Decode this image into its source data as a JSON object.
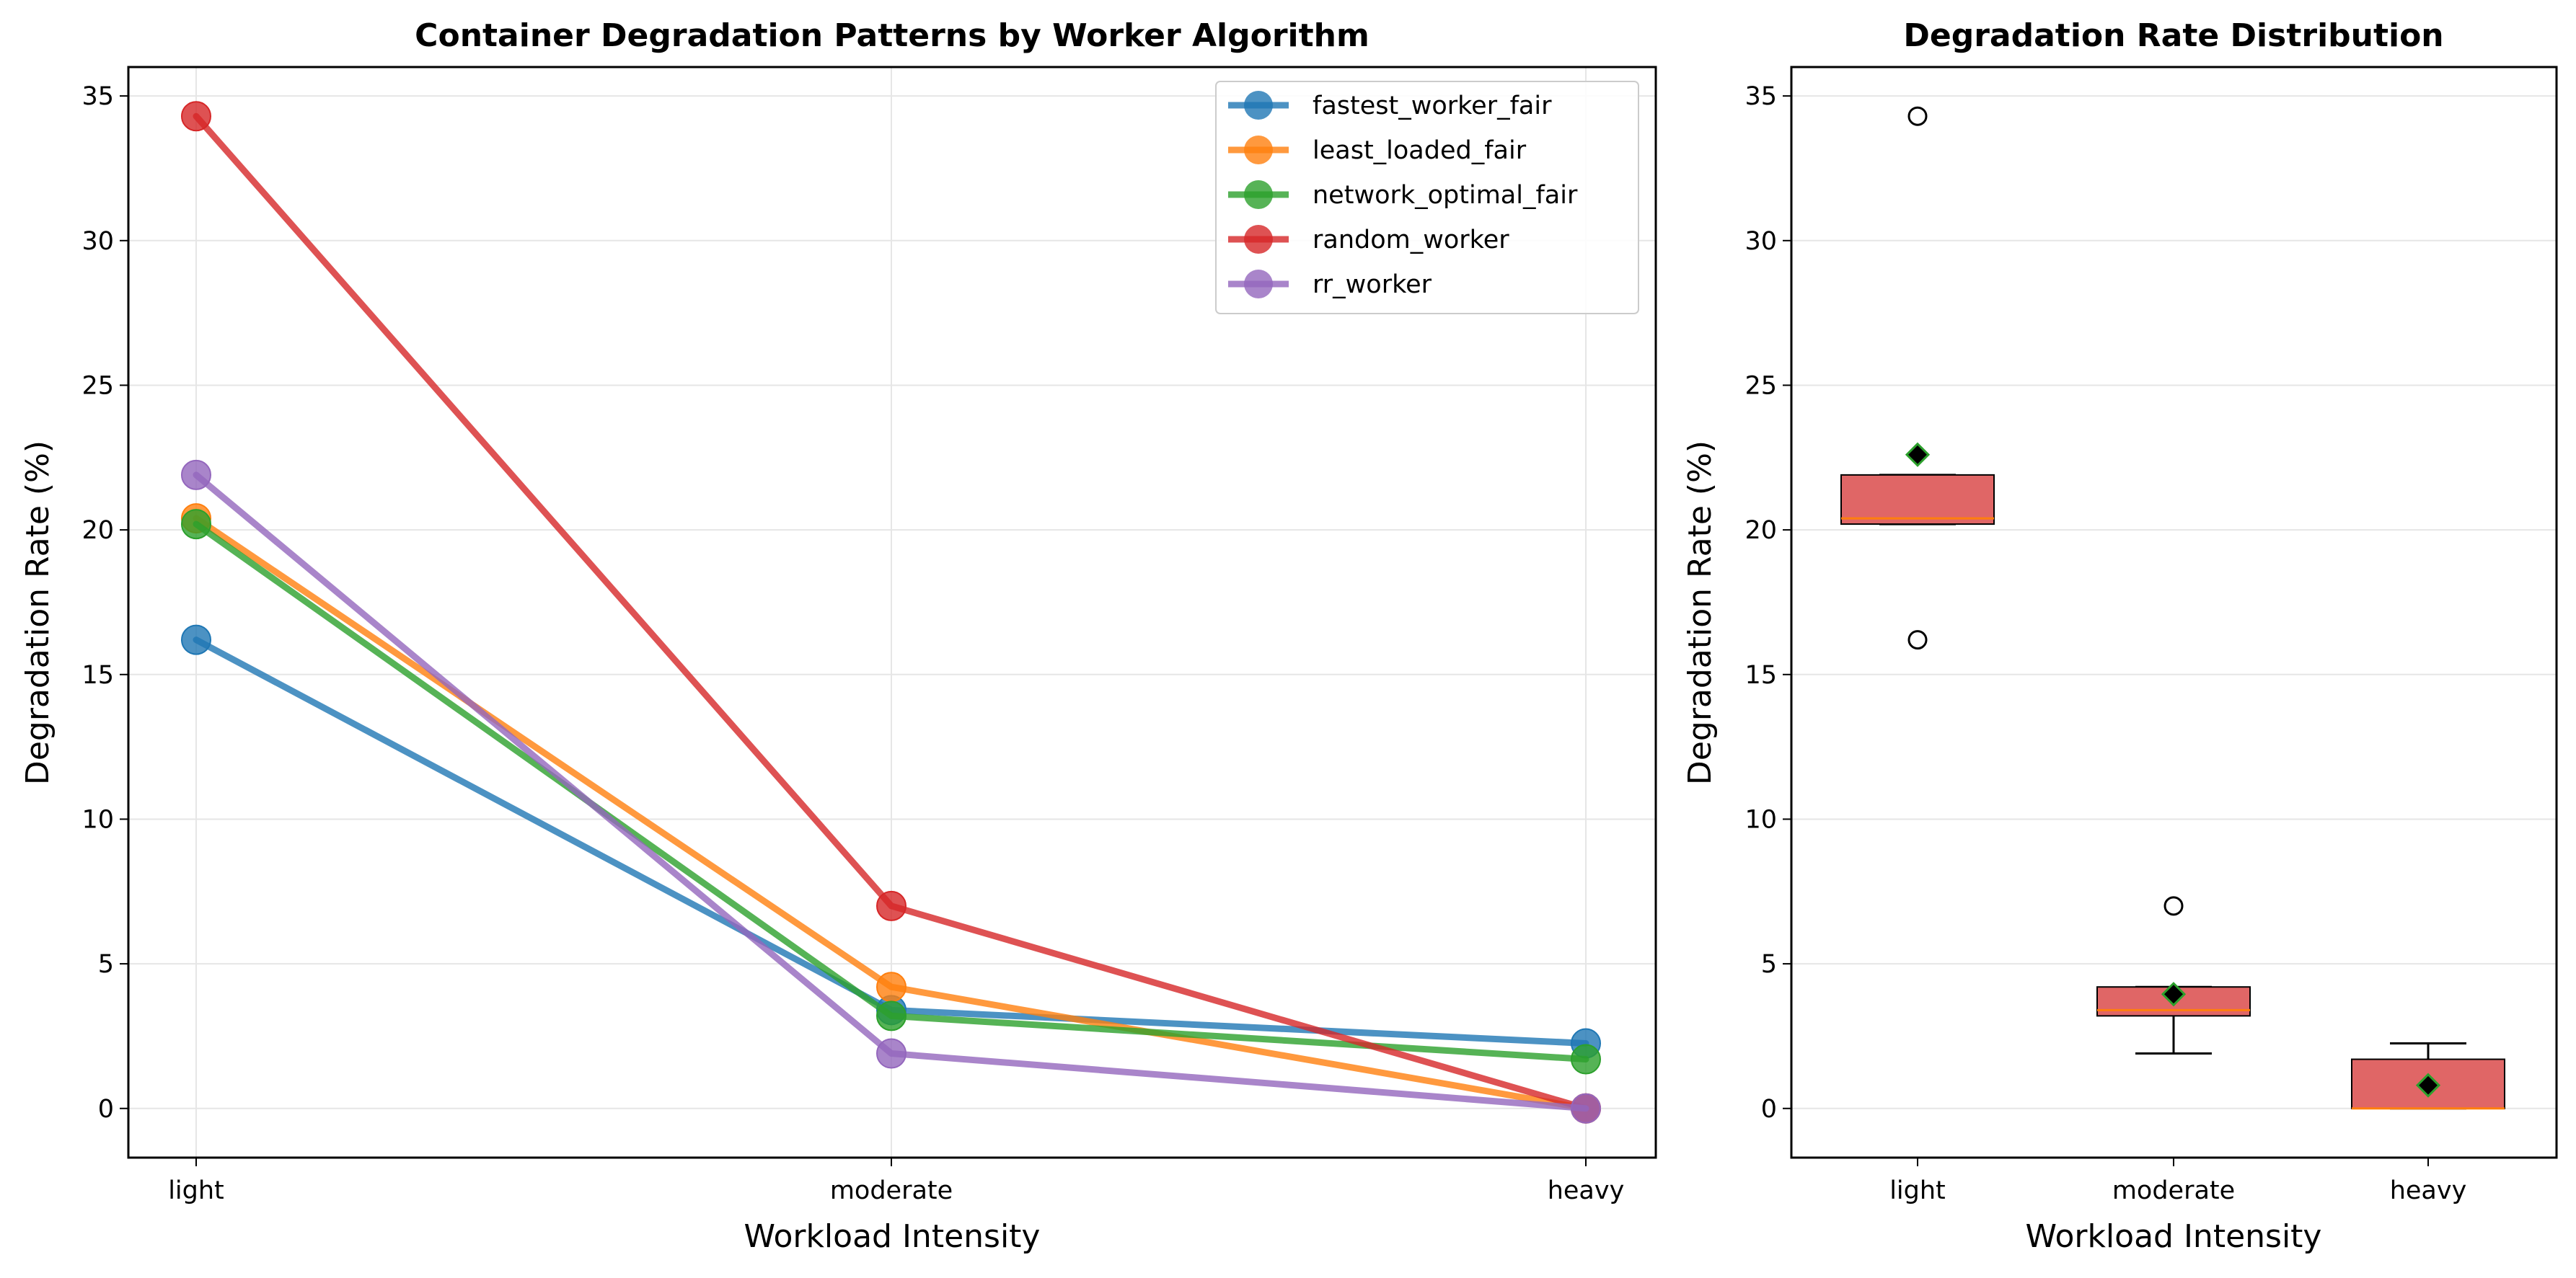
{
  "chart_data": [
    {
      "type": "line",
      "title": "Container Degradation Patterns by Worker Algorithm",
      "xlabel": "Workload Intensity",
      "ylabel": "Degradation Rate (%)",
      "categories": [
        "light",
        "moderate",
        "heavy"
      ],
      "ylim": [
        -1.7,
        36
      ],
      "yticks": [
        "0",
        "5",
        "10",
        "15",
        "20",
        "25",
        "30",
        "35"
      ],
      "grid": true,
      "legend_position": "top-right",
      "series": [
        {
          "name": "fastest_worker_fair",
          "color": "#1f77b4",
          "values": [
            16.2,
            3.4,
            2.25
          ]
        },
        {
          "name": "least_loaded_fair",
          "color": "#ff7f0e",
          "values": [
            20.4,
            4.2,
            0.0
          ]
        },
        {
          "name": "network_optimal_fair",
          "color": "#2ca02c",
          "values": [
            20.2,
            3.2,
            1.7
          ]
        },
        {
          "name": "random_worker",
          "color": "#d62728",
          "values": [
            34.3,
            7.0,
            0.0
          ]
        },
        {
          "name": "rr_worker",
          "color": "#9467bd",
          "values": [
            21.9,
            1.9,
            0.0
          ]
        }
      ]
    },
    {
      "type": "box",
      "title": "Degradation Rate Distribution",
      "xlabel": "Workload Intensity",
      "ylabel": "Degradation Rate (%)",
      "categories": [
        "light",
        "moderate",
        "heavy"
      ],
      "ylim": [
        -1.7,
        36
      ],
      "yticks": [
        "0",
        "5",
        "10",
        "15",
        "20",
        "25",
        "30",
        "35"
      ],
      "grid": true,
      "box_color": "#e06666",
      "mean_color": "#000000",
      "boxes": [
        {
          "q1": 20.2,
          "median": 20.4,
          "q3": 21.9,
          "whisker_low": 20.2,
          "whisker_high": 21.9,
          "mean": 22.6,
          "outliers": [
            34.3,
            16.2
          ]
        },
        {
          "q1": 3.2,
          "median": 3.4,
          "q3": 4.2,
          "whisker_low": 1.9,
          "whisker_high": 4.2,
          "mean": 3.95,
          "outliers": [
            7.0
          ]
        },
        {
          "q1": 0.0,
          "median": 0.0,
          "q3": 1.7,
          "whisker_low": 0.0,
          "whisker_high": 2.25,
          "mean": 0.8,
          "outliers": []
        }
      ]
    }
  ]
}
